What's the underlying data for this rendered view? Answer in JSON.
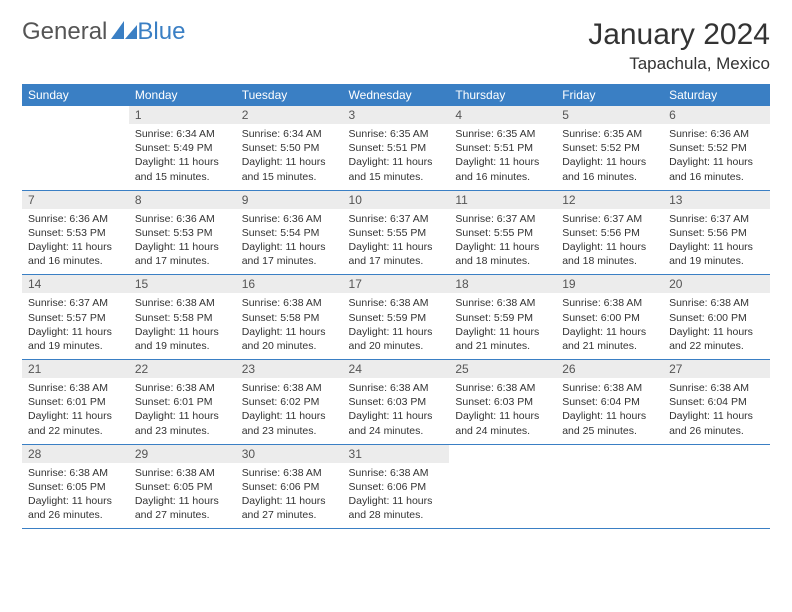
{
  "logo": {
    "textA": "General",
    "textB": "Blue"
  },
  "title": "January 2024",
  "location": "Tapachula, Mexico",
  "headers": [
    "Sunday",
    "Monday",
    "Tuesday",
    "Wednesday",
    "Thursday",
    "Friday",
    "Saturday"
  ],
  "colors": {
    "accent": "#3a7fc4",
    "dayHeader": "#ececec",
    "text": "#333333",
    "background": "#ffffff"
  },
  "weeks": [
    [
      null,
      {
        "n": "1",
        "sr": "Sunrise: 6:34 AM",
        "ss": "Sunset: 5:49 PM",
        "dl": "Daylight: 11 hours and 15 minutes."
      },
      {
        "n": "2",
        "sr": "Sunrise: 6:34 AM",
        "ss": "Sunset: 5:50 PM",
        "dl": "Daylight: 11 hours and 15 minutes."
      },
      {
        "n": "3",
        "sr": "Sunrise: 6:35 AM",
        "ss": "Sunset: 5:51 PM",
        "dl": "Daylight: 11 hours and 15 minutes."
      },
      {
        "n": "4",
        "sr": "Sunrise: 6:35 AM",
        "ss": "Sunset: 5:51 PM",
        "dl": "Daylight: 11 hours and 16 minutes."
      },
      {
        "n": "5",
        "sr": "Sunrise: 6:35 AM",
        "ss": "Sunset: 5:52 PM",
        "dl": "Daylight: 11 hours and 16 minutes."
      },
      {
        "n": "6",
        "sr": "Sunrise: 6:36 AM",
        "ss": "Sunset: 5:52 PM",
        "dl": "Daylight: 11 hours and 16 minutes."
      }
    ],
    [
      {
        "n": "7",
        "sr": "Sunrise: 6:36 AM",
        "ss": "Sunset: 5:53 PM",
        "dl": "Daylight: 11 hours and 16 minutes."
      },
      {
        "n": "8",
        "sr": "Sunrise: 6:36 AM",
        "ss": "Sunset: 5:53 PM",
        "dl": "Daylight: 11 hours and 17 minutes."
      },
      {
        "n": "9",
        "sr": "Sunrise: 6:36 AM",
        "ss": "Sunset: 5:54 PM",
        "dl": "Daylight: 11 hours and 17 minutes."
      },
      {
        "n": "10",
        "sr": "Sunrise: 6:37 AM",
        "ss": "Sunset: 5:55 PM",
        "dl": "Daylight: 11 hours and 17 minutes."
      },
      {
        "n": "11",
        "sr": "Sunrise: 6:37 AM",
        "ss": "Sunset: 5:55 PM",
        "dl": "Daylight: 11 hours and 18 minutes."
      },
      {
        "n": "12",
        "sr": "Sunrise: 6:37 AM",
        "ss": "Sunset: 5:56 PM",
        "dl": "Daylight: 11 hours and 18 minutes."
      },
      {
        "n": "13",
        "sr": "Sunrise: 6:37 AM",
        "ss": "Sunset: 5:56 PM",
        "dl": "Daylight: 11 hours and 19 minutes."
      }
    ],
    [
      {
        "n": "14",
        "sr": "Sunrise: 6:37 AM",
        "ss": "Sunset: 5:57 PM",
        "dl": "Daylight: 11 hours and 19 minutes."
      },
      {
        "n": "15",
        "sr": "Sunrise: 6:38 AM",
        "ss": "Sunset: 5:58 PM",
        "dl": "Daylight: 11 hours and 19 minutes."
      },
      {
        "n": "16",
        "sr": "Sunrise: 6:38 AM",
        "ss": "Sunset: 5:58 PM",
        "dl": "Daylight: 11 hours and 20 minutes."
      },
      {
        "n": "17",
        "sr": "Sunrise: 6:38 AM",
        "ss": "Sunset: 5:59 PM",
        "dl": "Daylight: 11 hours and 20 minutes."
      },
      {
        "n": "18",
        "sr": "Sunrise: 6:38 AM",
        "ss": "Sunset: 5:59 PM",
        "dl": "Daylight: 11 hours and 21 minutes."
      },
      {
        "n": "19",
        "sr": "Sunrise: 6:38 AM",
        "ss": "Sunset: 6:00 PM",
        "dl": "Daylight: 11 hours and 21 minutes."
      },
      {
        "n": "20",
        "sr": "Sunrise: 6:38 AM",
        "ss": "Sunset: 6:00 PM",
        "dl": "Daylight: 11 hours and 22 minutes."
      }
    ],
    [
      {
        "n": "21",
        "sr": "Sunrise: 6:38 AM",
        "ss": "Sunset: 6:01 PM",
        "dl": "Daylight: 11 hours and 22 minutes."
      },
      {
        "n": "22",
        "sr": "Sunrise: 6:38 AM",
        "ss": "Sunset: 6:01 PM",
        "dl": "Daylight: 11 hours and 23 minutes."
      },
      {
        "n": "23",
        "sr": "Sunrise: 6:38 AM",
        "ss": "Sunset: 6:02 PM",
        "dl": "Daylight: 11 hours and 23 minutes."
      },
      {
        "n": "24",
        "sr": "Sunrise: 6:38 AM",
        "ss": "Sunset: 6:03 PM",
        "dl": "Daylight: 11 hours and 24 minutes."
      },
      {
        "n": "25",
        "sr": "Sunrise: 6:38 AM",
        "ss": "Sunset: 6:03 PM",
        "dl": "Daylight: 11 hours and 24 minutes."
      },
      {
        "n": "26",
        "sr": "Sunrise: 6:38 AM",
        "ss": "Sunset: 6:04 PM",
        "dl": "Daylight: 11 hours and 25 minutes."
      },
      {
        "n": "27",
        "sr": "Sunrise: 6:38 AM",
        "ss": "Sunset: 6:04 PM",
        "dl": "Daylight: 11 hours and 26 minutes."
      }
    ],
    [
      {
        "n": "28",
        "sr": "Sunrise: 6:38 AM",
        "ss": "Sunset: 6:05 PM",
        "dl": "Daylight: 11 hours and 26 minutes."
      },
      {
        "n": "29",
        "sr": "Sunrise: 6:38 AM",
        "ss": "Sunset: 6:05 PM",
        "dl": "Daylight: 11 hours and 27 minutes."
      },
      {
        "n": "30",
        "sr": "Sunrise: 6:38 AM",
        "ss": "Sunset: 6:06 PM",
        "dl": "Daylight: 11 hours and 27 minutes."
      },
      {
        "n": "31",
        "sr": "Sunrise: 6:38 AM",
        "ss": "Sunset: 6:06 PM",
        "dl": "Daylight: 11 hours and 28 minutes."
      },
      null,
      null,
      null
    ]
  ]
}
